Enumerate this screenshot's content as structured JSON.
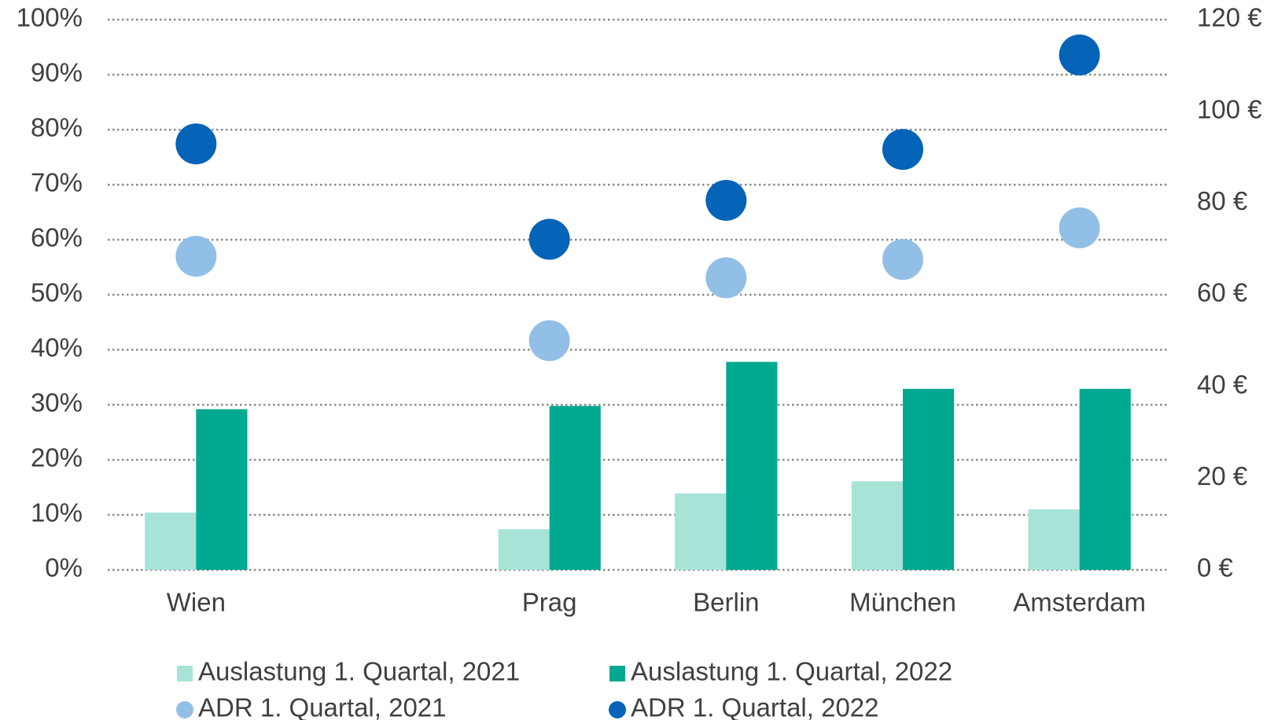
{
  "chart_data": {
    "type": "bar",
    "categories": [
      "Wien",
      null,
      "Prag",
      "Berlin",
      "München",
      "Amsterdam"
    ],
    "series": [
      {
        "name": "Auslastung 1. Quartal, 2021",
        "type": "bar",
        "color": "#a8e3d8",
        "values": [
          10.4,
          null,
          7.4,
          13.9,
          16.1,
          11.0
        ]
      },
      {
        "name": "Auslastung 1. Quartal, 2022",
        "type": "bar",
        "color": "#00a98f",
        "values": [
          29.2,
          null,
          29.8,
          37.8,
          32.9,
          32.9
        ]
      },
      {
        "name": "ADR 1. Quartal, 2021",
        "type": "scatter",
        "axis": "y2",
        "color": "#92bfe6",
        "values": [
          68.4,
          null,
          50.0,
          63.7,
          67.7,
          74.6
        ]
      },
      {
        "name": "ADR 1. Quartal, 2022",
        "type": "scatter",
        "axis": "y2",
        "color": "#0563b8",
        "values": [
          92.9,
          null,
          72.1,
          80.6,
          91.7,
          112.3
        ]
      }
    ],
    "ylim": [
      0,
      100
    ],
    "yticks": [
      {
        "value": 0,
        "label": "0%"
      },
      {
        "value": 10,
        "label": "10%"
      },
      {
        "value": 20,
        "label": "20%"
      },
      {
        "value": 30,
        "label": "30%"
      },
      {
        "value": 40,
        "label": "40%"
      },
      {
        "value": 50,
        "label": "50%"
      },
      {
        "value": 60,
        "label": "60%"
      },
      {
        "value": 70,
        "label": "70%"
      },
      {
        "value": 80,
        "label": "80%"
      },
      {
        "value": 90,
        "label": "90%"
      },
      {
        "value": 100,
        "label": "100%"
      }
    ],
    "y2lim": [
      0,
      120
    ],
    "y2ticks": [
      {
        "value": 0,
        "label": "0 €"
      },
      {
        "value": 20,
        "label": "20 €"
      },
      {
        "value": 40,
        "label": "40 €"
      },
      {
        "value": 60,
        "label": "60 €"
      },
      {
        "value": 80,
        "label": "80 €"
      },
      {
        "value": 100,
        "label": "100 €"
      },
      {
        "value": 120,
        "label": "120 €"
      }
    ],
    "grid": true,
    "legend": "bottom"
  }
}
